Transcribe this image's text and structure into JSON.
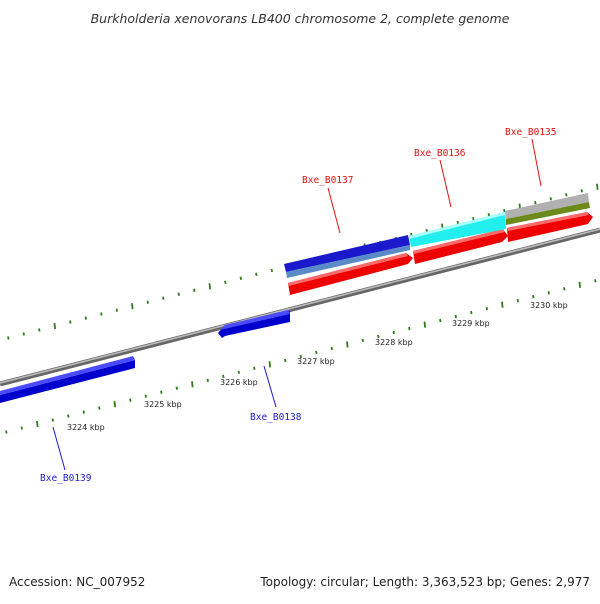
{
  "title": "Burkholderia xenovorans LB400 chromosome 2, complete genome",
  "footer": {
    "accession": "Accession: NC_007952",
    "stats": "Topology: circular; Length: 3,363,523 bp; Genes: 2,977"
  },
  "colors": {
    "tick": "#2e7d1a",
    "backbone": "#8a8a8a",
    "forward_label": "#dd1111",
    "reverse_label": "#1a1acc"
  },
  "kbp_labels": [
    "3224 kbp",
    "3225 kbp",
    "3226 kbp",
    "3227 kbp",
    "3228 kbp",
    "3229 kbp",
    "3230 kbp"
  ],
  "genes": [
    {
      "id": "Bxe_B0139",
      "strand": "reverse"
    },
    {
      "id": "Bxe_B0138",
      "strand": "reverse"
    },
    {
      "id": "Bxe_B0137",
      "strand": "forward"
    },
    {
      "id": "Bxe_B0136",
      "strand": "forward"
    },
    {
      "id": "Bxe_B0135",
      "strand": "forward"
    }
  ]
}
